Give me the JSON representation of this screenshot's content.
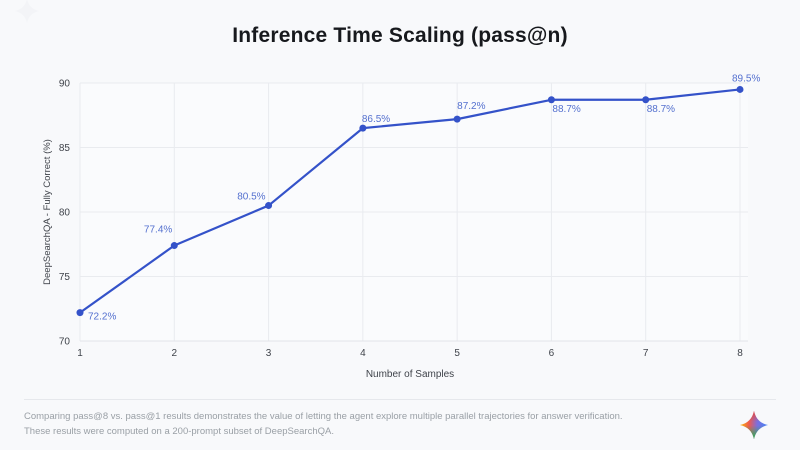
{
  "page": {
    "background": "#f8f9fb",
    "watermark_icon": "sparkle",
    "brand_icon": "gemini-sparkle",
    "footer": {
      "line1": "Comparing pass@8 vs. pass@1 results demonstrates the value of letting the agent explore multiple parallel trajectories for answer verification.",
      "line2": "These results were computed on a 200-prompt subset of DeepSearchQA."
    }
  },
  "chart_data": {
    "type": "line",
    "title": "Inference Time Scaling (pass@n)",
    "xlabel": "Number of Samples",
    "ylabel": "DeepSearchQA - Fully Correct (%)",
    "x": [
      1,
      2,
      3,
      4,
      5,
      6,
      7,
      8
    ],
    "series": [
      {
        "name": "pass@n",
        "values": [
          72.2,
          77.4,
          80.5,
          86.5,
          87.2,
          88.7,
          88.7,
          89.5
        ]
      }
    ],
    "point_labels": [
      "72.2%",
      "77.4%",
      "80.5%",
      "86.5%",
      "87.2%",
      "88.7%",
      "88.7%",
      "89.5%"
    ],
    "xticks": [
      1,
      2,
      3,
      4,
      5,
      6,
      7,
      8
    ],
    "yticks": [
      70,
      75,
      80,
      85,
      90
    ],
    "xlim": [
      1,
      8
    ],
    "ylim": [
      70,
      90
    ],
    "grid": true,
    "legend": false,
    "marker": "circle"
  },
  "colors": {
    "line": "#3452c9",
    "point_label": "#5470cf",
    "grid": "#e9ebef",
    "axis_line": "#e2e4e9",
    "tick": "#3f434a",
    "axis_title": "#3f434a",
    "title": "#17191d",
    "footer_text": "#9aa0a6",
    "divider": "#e6e8ec",
    "plot_bg": "#fafbfd",
    "gemini": {
      "red": "#ea4335",
      "yellow": "#fbbc05",
      "blue": "#4285f4",
      "green": "#34a853"
    }
  }
}
